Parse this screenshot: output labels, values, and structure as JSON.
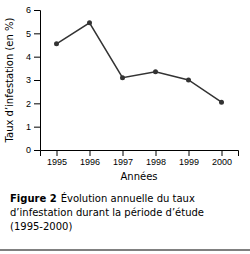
{
  "chart_data": {
    "type": "line",
    "x": [
      1995,
      1996,
      1997,
      1998,
      1999,
      2000
    ],
    "values": [
      4.55,
      5.45,
      3.1,
      3.35,
      3.0,
      2.05
    ],
    "xlim": [
      1994.5,
      2000.5
    ],
    "xticks": [
      1995,
      1996,
      1997,
      1998,
      1999,
      2000
    ],
    "ylim": [
      0,
      6
    ],
    "yticks": [
      0,
      1,
      2,
      3,
      4,
      5,
      6
    ],
    "xlabel": "Années",
    "ylabel": "Taux d’infestation (en %)",
    "color": "#333333",
    "marker": "circle",
    "grid": false,
    "annotations": [
      "Figure 2",
      "Évolution annuelle du taux",
      "d’infestation durant la période d’étude",
      "(1995-2000)"
    ]
  }
}
